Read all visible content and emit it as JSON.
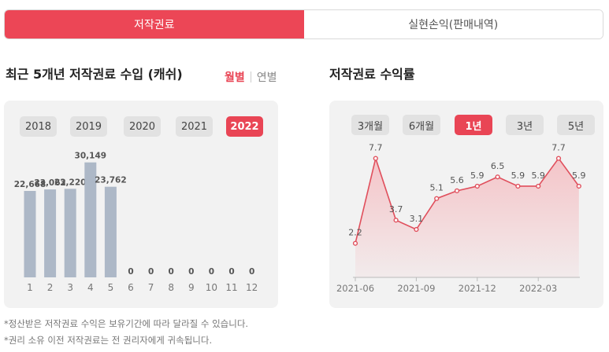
{
  "tabs": [
    {
      "label": "저작권료",
      "active": true
    },
    {
      "label": "실현손익(판매내역)",
      "active": false
    }
  ],
  "left_section": {
    "title": "최근 5개년 저작권료 수입 (캐쉬)",
    "toggle_on": "월별",
    "toggle_off": "연별",
    "years": [
      "2018",
      "2019",
      "2020",
      "2021",
      "2022"
    ],
    "selected_year": "2022"
  },
  "right_section": {
    "title": "저작권료 수익률",
    "ranges": [
      "3개월",
      "6개월",
      "1년",
      "3년",
      "5년"
    ],
    "selected_range": "1년"
  },
  "notes": [
    "*정산받은 저작권료 수익은 보유기간에 따라 달라질 수 있습니다.",
    "*권리 소유 이전 저작권료는 전 권리자에게 귀속됩니다."
  ],
  "colors": {
    "accent": "#e94555",
    "bar": "#adb8c7",
    "line": "#e04f5c",
    "area": "#f4c2c6"
  },
  "chart_data": [
    {
      "type": "bar",
      "categories": [
        "1",
        "2",
        "3",
        "4",
        "5",
        "6",
        "7",
        "8",
        "9",
        "10",
        "11",
        "12"
      ],
      "values": [
        22668,
        23062,
        23220,
        30149,
        23762,
        0,
        0,
        0,
        0,
        0,
        0,
        0
      ],
      "value_labels": [
        "22,668",
        "23,062",
        "23,220",
        "30,149",
        "23,762",
        "0",
        "0",
        "0",
        "0",
        "0",
        "0",
        "0"
      ],
      "ylim": [
        0,
        34000
      ],
      "grid": false
    },
    {
      "type": "area",
      "x_ticks": [
        "2021-06",
        "2021-09",
        "2021-12",
        "2022-03"
      ],
      "values": [
        2.2,
        7.7,
        3.7,
        3.1,
        5.1,
        5.6,
        5.9,
        6.5,
        5.9,
        5.9,
        7.7,
        5.9
      ],
      "value_labels": [
        "2.2",
        "7.7",
        "3.7",
        "3.1",
        "5.1",
        "5.6",
        "5.9",
        "6.5",
        "5.9",
        "5.9",
        "7.7",
        "5.9"
      ],
      "ylim": [
        0,
        9
      ],
      "grid": false
    }
  ]
}
